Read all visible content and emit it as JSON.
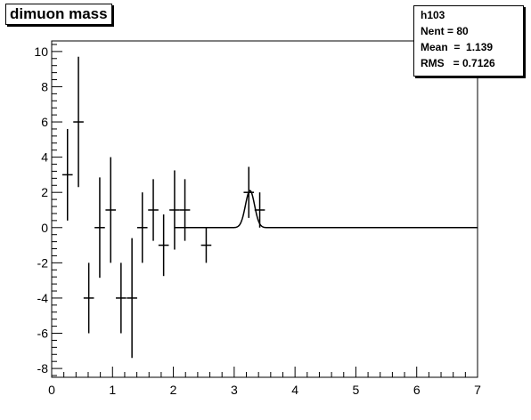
{
  "title": "dimuon mass",
  "stats": {
    "name": "h103",
    "entries": "Nent = 80",
    "mean": "Mean  =  1.139",
    "rms": "RMS   = 0.7126"
  },
  "chart_data": {
    "type": "scatter",
    "title": "dimuon mass",
    "xlabel": "",
    "ylabel": "",
    "xlim": [
      0,
      7
    ],
    "ylim": [
      -8.5,
      10.6
    ],
    "x_ticks": [
      0,
      1,
      2,
      3,
      4,
      5,
      6,
      7
    ],
    "y_ticks": [
      -8,
      -6,
      -4,
      -2,
      0,
      2,
      4,
      6,
      8,
      10
    ],
    "grid": false,
    "points": [
      {
        "x": 0.26,
        "y": 3,
        "xerr": 0.085,
        "yerr": 2.6
      },
      {
        "x": 0.44,
        "y": 6,
        "xerr": 0.085,
        "yerr": 3.7
      },
      {
        "x": 0.61,
        "y": -4,
        "xerr": 0.085,
        "yerr": 2.0
      },
      {
        "x": 0.79,
        "y": 0,
        "xerr": 0.085,
        "yerr": 2.85
      },
      {
        "x": 0.97,
        "y": 1,
        "xerr": 0.085,
        "yerr": 3.0
      },
      {
        "x": 1.14,
        "y": -4,
        "xerr": 0.085,
        "yerr": 2.0
      },
      {
        "x": 1.32,
        "y": -4,
        "xerr": 0.085,
        "yerr": 3.4
      },
      {
        "x": 1.49,
        "y": 0,
        "xerr": 0.085,
        "yerr": 2.0
      },
      {
        "x": 1.67,
        "y": 1,
        "xerr": 0.085,
        "yerr": 1.75
      },
      {
        "x": 1.84,
        "y": -1,
        "xerr": 0.085,
        "yerr": 1.75
      },
      {
        "x": 2.02,
        "y": 1,
        "xerr": 0.085,
        "yerr": 2.25
      },
      {
        "x": 2.19,
        "y": 1,
        "xerr": 0.085,
        "yerr": 1.75
      },
      {
        "x": 2.54,
        "y": -1,
        "xerr": 0.085,
        "yerr": 1.0
      },
      {
        "x": 3.24,
        "y": 2,
        "xerr": 0.085,
        "yerr": 1.45
      },
      {
        "x": 3.42,
        "y": 1,
        "xerr": 0.085,
        "yerr": 1.0
      }
    ],
    "fit": {
      "type": "gaussian",
      "constant": 2.1,
      "mean": 3.26,
      "sigma": 0.075,
      "x_from": 2.02,
      "x_to": 7
    }
  }
}
